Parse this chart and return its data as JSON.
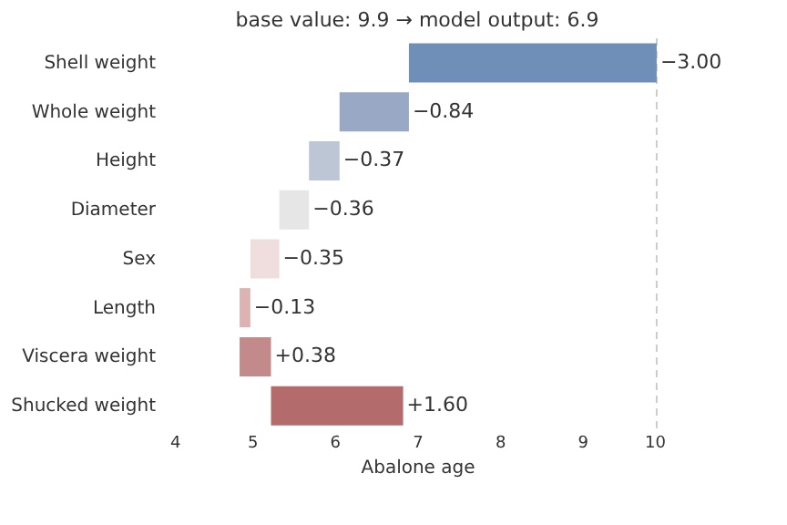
{
  "chart_data": {
    "type": "bar",
    "orientation": "horizontal",
    "title": "base value: 9.9  →  model output: 6.9",
    "xlabel": "Abalone age",
    "categories": [
      "Shell weight",
      "Whole weight",
      "Height",
      "Diameter",
      "Sex",
      "Length",
      "Viscera weight",
      "Shucked weight"
    ],
    "values": [
      -3.0,
      -0.84,
      -0.37,
      -0.36,
      -0.35,
      -0.13,
      0.38,
      1.6
    ],
    "base": [
      9.9,
      6.9,
      6.06,
      5.69,
      5.33,
      4.98,
      4.85,
      5.23
    ],
    "colors": [
      "#6f8eb8",
      "#98a8c5",
      "#bcc6d5",
      "#e6e6e6",
      "#f0dede",
      "#dcb2b2",
      "#c28a8a",
      "#b46b6b"
    ],
    "value_labels": [
      "−3.00",
      "−0.84",
      "−0.37",
      "−0.36",
      "−0.35",
      "−0.13",
      "+0.38",
      "+1.60"
    ],
    "xlim": [
      4,
      10
    ],
    "xticks": [
      4,
      5,
      6,
      7,
      8,
      9,
      10
    ],
    "grid": false,
    "ref_lines": [
      {
        "axis": "x",
        "value": 9.9,
        "color": "#cccccc",
        "line_style": "dashed"
      }
    ]
  }
}
